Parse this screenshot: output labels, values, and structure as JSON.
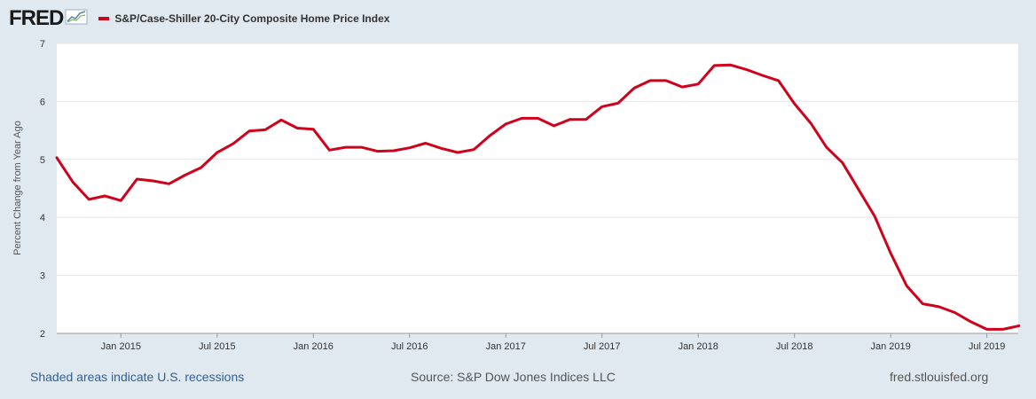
{
  "header": {
    "logo_text": "FRED",
    "legend_label": "S&P/Case-Shiller 20-City Composite Home Price Index",
    "series_color": "#d0021b"
  },
  "footer": {
    "recessions_link": "Shaded areas indicate U.S. recessions",
    "source": "Source: S&P Dow Jones Indices LLC",
    "site": "fred.stlouisfed.org"
  },
  "chart_data": {
    "type": "line",
    "title": "",
    "xlabel": "",
    "ylabel": "Percent Change from Year Ago",
    "ylim": [
      2,
      7
    ],
    "yticks": [
      2,
      3,
      4,
      5,
      6,
      7
    ],
    "xlim": [
      "2014-09",
      "2019-10"
    ],
    "xticks": [
      "Jan 2015",
      "Jul 2015",
      "Jan 2016",
      "Jul 2016",
      "Jan 2017",
      "Jul 2017",
      "Jan 2018",
      "Jul 2018",
      "Jan 2019",
      "Jul 2019"
    ],
    "grid": true,
    "legend_position": "top-left",
    "series": [
      {
        "name": "S&P/Case-Shiller 20-City Composite Home Price Index",
        "color": "#d0021b",
        "x": [
          "2014-09",
          "2014-10",
          "2014-11",
          "2014-12",
          "2015-01",
          "2015-02",
          "2015-03",
          "2015-04",
          "2015-05",
          "2015-06",
          "2015-07",
          "2015-08",
          "2015-09",
          "2015-10",
          "2015-11",
          "2015-12",
          "2016-01",
          "2016-02",
          "2016-03",
          "2016-04",
          "2016-05",
          "2016-06",
          "2016-07",
          "2016-08",
          "2016-09",
          "2016-10",
          "2016-11",
          "2016-12",
          "2017-01",
          "2017-02",
          "2017-03",
          "2017-04",
          "2017-05",
          "2017-06",
          "2017-07",
          "2017-08",
          "2017-09",
          "2017-10",
          "2017-11",
          "2017-12",
          "2018-01",
          "2018-02",
          "2018-03",
          "2018-04",
          "2018-05",
          "2018-06",
          "2018-07",
          "2018-08",
          "2018-09",
          "2018-10",
          "2018-11",
          "2018-12",
          "2019-01",
          "2019-02",
          "2019-03",
          "2019-04",
          "2019-05",
          "2019-06",
          "2019-07",
          "2019-08",
          "2019-09"
        ],
        "values": [
          5.03,
          4.61,
          4.31,
          4.37,
          4.29,
          4.66,
          4.63,
          4.58,
          4.73,
          4.86,
          5.12,
          5.27,
          5.49,
          5.51,
          5.68,
          5.54,
          5.52,
          5.16,
          5.21,
          5.21,
          5.14,
          5.15,
          5.2,
          5.28,
          5.19,
          5.12,
          5.17,
          5.41,
          5.61,
          5.71,
          5.71,
          5.58,
          5.69,
          5.69,
          5.91,
          5.97,
          6.23,
          6.36,
          6.36,
          6.25,
          6.3,
          6.62,
          6.63,
          6.55,
          6.45,
          6.36,
          5.96,
          5.63,
          5.21,
          4.94,
          4.48,
          4.02,
          3.38,
          2.82,
          2.51,
          2.46,
          2.36,
          2.2,
          2.07,
          2.07,
          2.13
        ]
      }
    ]
  }
}
